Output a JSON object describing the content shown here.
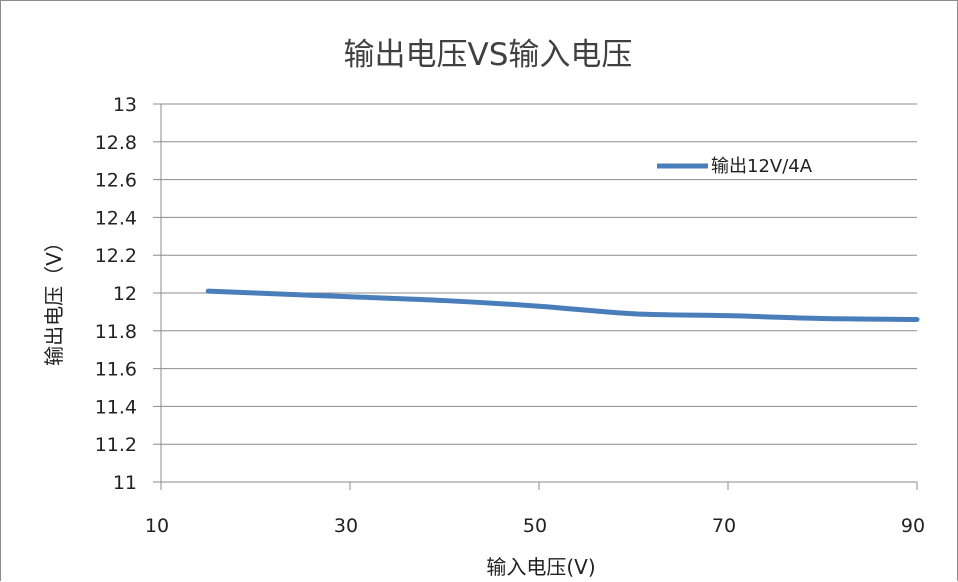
{
  "chart_data": {
    "type": "line",
    "title": "输出电压VS输入电压",
    "xlabel": "输入电压(V)",
    "ylabel": "输出电压（V）",
    "xlim": [
      10,
      90
    ],
    "ylim": [
      11,
      13
    ],
    "x_ticks": [
      "10",
      "30",
      "50",
      "70",
      "90"
    ],
    "y_ticks": [
      "11",
      "11.2",
      "11.4",
      "11.6",
      "11.8",
      "12",
      "12.2",
      "12.4",
      "12.6",
      "12.8",
      "13"
    ],
    "grid": "horizontal",
    "legend": "top-right",
    "series": [
      {
        "name": "输出12V/4A",
        "color": "#4a7ebb",
        "x": [
          15,
          20,
          30,
          40,
          50,
          60,
          70,
          80,
          90
        ],
        "y": [
          12.01,
          12.0,
          11.98,
          11.96,
          11.93,
          11.89,
          11.88,
          11.865,
          11.86
        ]
      }
    ]
  }
}
